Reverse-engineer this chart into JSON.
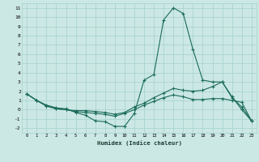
{
  "xlabel": "Humidex (Indice chaleur)",
  "bg_color": "#cce8e4",
  "grid_color": "#aad4cf",
  "line_color": "#1a6b5a",
  "xlim": [
    -0.5,
    23.5
  ],
  "ylim": [
    -2.5,
    11.5
  ],
  "xticks": [
    0,
    1,
    2,
    3,
    4,
    5,
    6,
    7,
    8,
    9,
    10,
    11,
    12,
    13,
    14,
    15,
    16,
    17,
    18,
    19,
    20,
    21,
    22,
    23
  ],
  "yticks": [
    -2,
    -1,
    0,
    1,
    2,
    3,
    4,
    5,
    6,
    7,
    8,
    9,
    10,
    11
  ],
  "line1_x": [
    0,
    1,
    2,
    3,
    4,
    5,
    6,
    7,
    8,
    9,
    10,
    11,
    12,
    13,
    14,
    15,
    16,
    17,
    18,
    19,
    20,
    21,
    22,
    23
  ],
  "line1_y": [
    1.7,
    1.0,
    0.5,
    0.2,
    0.1,
    -0.3,
    -0.6,
    -1.2,
    -1.3,
    -1.8,
    -1.8,
    -0.4,
    3.2,
    3.8,
    9.7,
    11.0,
    10.4,
    6.5,
    3.2,
    3.0,
    3.0,
    1.4,
    0.0,
    -1.2
  ],
  "line2_x": [
    0,
    1,
    2,
    3,
    4,
    5,
    6,
    7,
    8,
    9,
    10,
    11,
    12,
    13,
    14,
    15,
    16,
    17,
    18,
    19,
    20,
    21,
    22,
    23
  ],
  "line2_y": [
    1.7,
    1.0,
    0.4,
    0.1,
    0.0,
    -0.1,
    -0.1,
    -0.2,
    -0.3,
    -0.5,
    -0.3,
    0.3,
    0.7,
    1.3,
    1.8,
    2.3,
    2.1,
    2.0,
    2.1,
    2.5,
    3.0,
    1.3,
    0.3,
    -1.2
  ],
  "line3_x": [
    0,
    1,
    2,
    3,
    4,
    5,
    6,
    7,
    8,
    9,
    10,
    11,
    12,
    13,
    14,
    15,
    16,
    17,
    18,
    19,
    20,
    21,
    22,
    23
  ],
  "line3_y": [
    1.7,
    1.0,
    0.4,
    0.1,
    0.0,
    -0.2,
    -0.3,
    -0.4,
    -0.5,
    -0.7,
    -0.4,
    0.0,
    0.5,
    0.9,
    1.3,
    1.6,
    1.4,
    1.1,
    1.1,
    1.2,
    1.2,
    1.0,
    0.8,
    -1.2
  ],
  "marker": "+",
  "markersize": 3,
  "linewidth": 0.8
}
